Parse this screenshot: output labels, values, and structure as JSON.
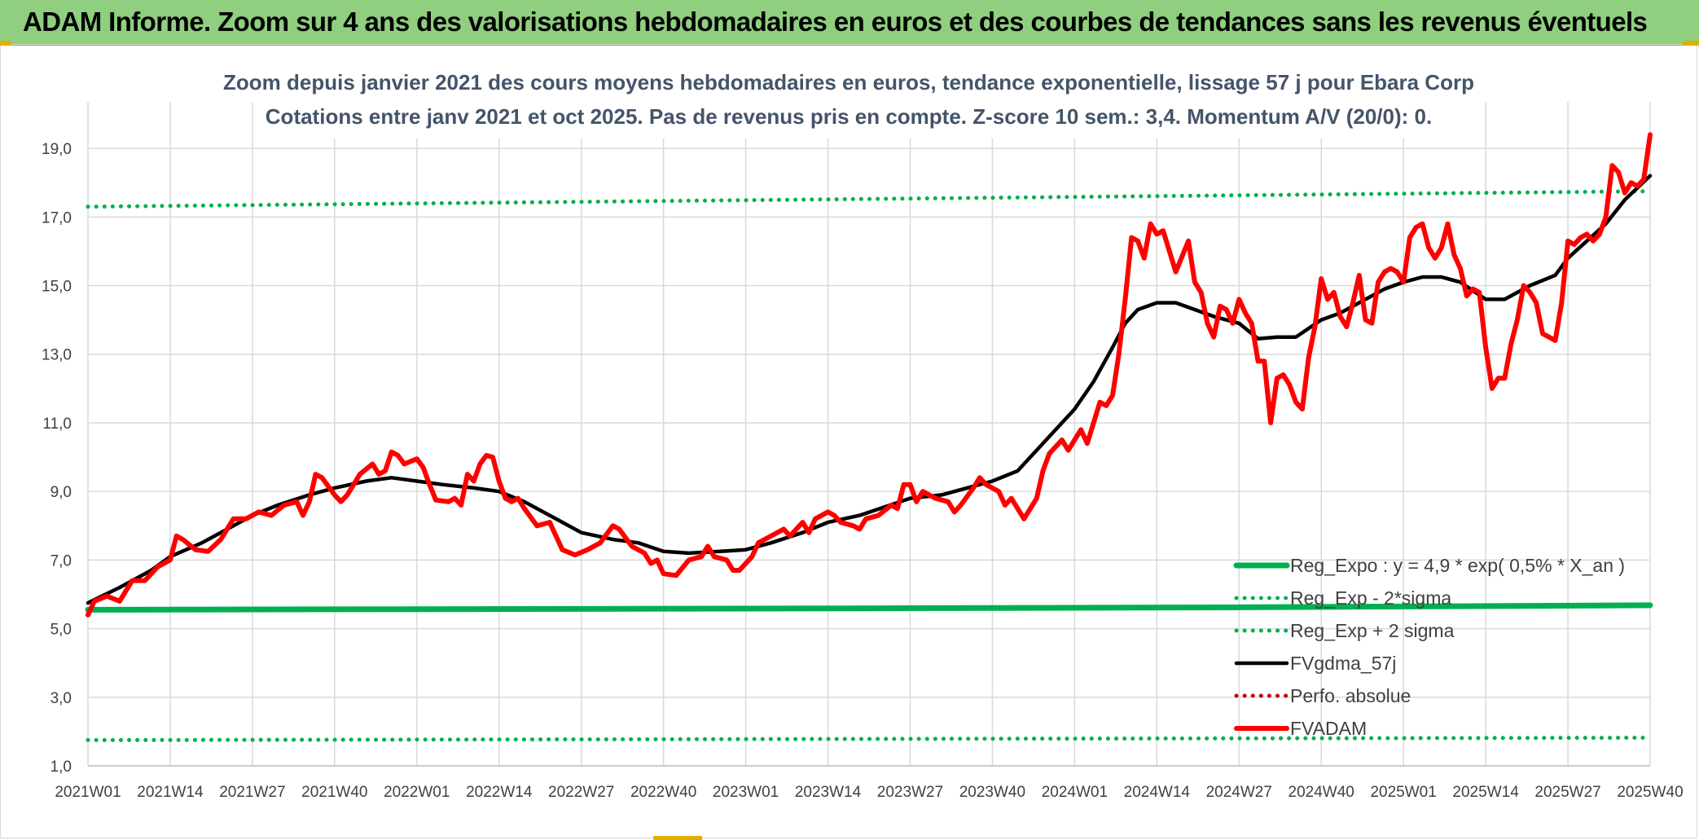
{
  "banner": {
    "title": "ADAM Informe. Zoom sur 4 ans des valorisations hebdomadaires en euros et des courbes de tendances sans les revenus éventuels"
  },
  "colors": {
    "banner_bg": "#8fcf7f",
    "reg_expo": "#00b050",
    "fvgdma": "#000000",
    "perfo": "#c00000",
    "fvadam": "#ff0000",
    "grid": "#d9d9d9"
  },
  "chart_data": {
    "type": "line",
    "title": "Zoom depuis janvier 2021 des cours moyens hebdomadaires en euros, tendance exponentielle, lissage 57 j pour Ebara Corp",
    "subtitle": "Cotations entre janv 2021 et oct 2025. Pas de revenus pris en compte. Z-score 10 sem.: 3,4. Momentum A/V (20/0): 0.",
    "xlabel": "",
    "ylabel": "",
    "ylim": [
      1,
      20
    ],
    "y_ticks": [
      "1,0",
      "3,0",
      "5,0",
      "7,0",
      "9,0",
      "11,0",
      "13,0",
      "15,0",
      "17,0",
      "19,0"
    ],
    "y_tick_values": [
      1,
      3,
      5,
      7,
      9,
      11,
      13,
      15,
      17,
      19
    ],
    "x_ticks": [
      "2021W01",
      "2021W14",
      "2021W27",
      "2021W40",
      "2022W01",
      "2022W14",
      "2022W27",
      "2022W40",
      "2023W01",
      "2023W14",
      "2023W27",
      "2023W40",
      "2024W01",
      "2024W14",
      "2024W27",
      "2024W40",
      "2025W01",
      "2025W14",
      "2025W27",
      "2025W40"
    ],
    "x_tick_index": [
      0,
      13,
      26,
      39,
      52,
      65,
      78,
      91,
      104,
      117,
      130,
      143,
      156,
      169,
      182,
      195,
      208,
      221,
      234,
      247
    ],
    "x_max_index": 247,
    "grid": true,
    "legend_position": "lower-right",
    "series": [
      {
        "name": "Reg_Expo : y = 4,9 * exp( 0,5% *  X_an )",
        "style": "solid-thick",
        "color": "#00b050",
        "points": [
          [
            0,
            5.55
          ],
          [
            60,
            5.57
          ],
          [
            120,
            5.59
          ],
          [
            180,
            5.62
          ],
          [
            247,
            5.68
          ]
        ]
      },
      {
        "name": "Reg_Exp - 2*sigma",
        "style": "dotted",
        "color": "#00b050",
        "points": [
          [
            0,
            1.75
          ],
          [
            247,
            1.82
          ]
        ]
      },
      {
        "name": "Reg_Exp + 2 sigma",
        "style": "dotted",
        "color": "#00b050",
        "points": [
          [
            0,
            17.3
          ],
          [
            247,
            17.75
          ]
        ]
      },
      {
        "name": "FVgdma_57j",
        "style": "solid",
        "color": "#000000",
        "points": [
          [
            0,
            5.75
          ],
          [
            5,
            6.2
          ],
          [
            10,
            6.7
          ],
          [
            13,
            7.1
          ],
          [
            18,
            7.5
          ],
          [
            23,
            8.0
          ],
          [
            26,
            8.3
          ],
          [
            30,
            8.6
          ],
          [
            35,
            8.9
          ],
          [
            39,
            9.1
          ],
          [
            44,
            9.3
          ],
          [
            48,
            9.4
          ],
          [
            52,
            9.3
          ],
          [
            56,
            9.2
          ],
          [
            61,
            9.1
          ],
          [
            65,
            9.0
          ],
          [
            69,
            8.7
          ],
          [
            73,
            8.3
          ],
          [
            78,
            7.8
          ],
          [
            83,
            7.6
          ],
          [
            87,
            7.5
          ],
          [
            91,
            7.25
          ],
          [
            95,
            7.2
          ],
          [
            100,
            7.25
          ],
          [
            104,
            7.3
          ],
          [
            108,
            7.5
          ],
          [
            113,
            7.8
          ],
          [
            117,
            8.1
          ],
          [
            122,
            8.3
          ],
          [
            126,
            8.55
          ],
          [
            130,
            8.8
          ],
          [
            135,
            8.9
          ],
          [
            139,
            9.1
          ],
          [
            143,
            9.3
          ],
          [
            147,
            9.6
          ],
          [
            150,
            10.2
          ],
          [
            153,
            10.8
          ],
          [
            156,
            11.4
          ],
          [
            159,
            12.2
          ],
          [
            162,
            13.2
          ],
          [
            164,
            13.9
          ],
          [
            166,
            14.3
          ],
          [
            169,
            14.5
          ],
          [
            172,
            14.5
          ],
          [
            175,
            14.3
          ],
          [
            178,
            14.1
          ],
          [
            182,
            13.9
          ],
          [
            185,
            13.45
          ],
          [
            188,
            13.5
          ],
          [
            191,
            13.5
          ],
          [
            195,
            14.0
          ],
          [
            198,
            14.2
          ],
          [
            202,
            14.6
          ],
          [
            205,
            14.9
          ],
          [
            208,
            15.1
          ],
          [
            211,
            15.25
          ],
          [
            214,
            15.25
          ],
          [
            217,
            15.1
          ],
          [
            221,
            14.6
          ],
          [
            224,
            14.6
          ],
          [
            228,
            15.0
          ],
          [
            232,
            15.3
          ],
          [
            234,
            15.8
          ],
          [
            237,
            16.3
          ],
          [
            240,
            16.8
          ],
          [
            243,
            17.5
          ],
          [
            247,
            18.2
          ]
        ]
      },
      {
        "name": "Perfo. absolue",
        "style": "dotted",
        "color": "#c00000",
        "points": []
      },
      {
        "name": "FVADAM",
        "style": "solid-thick",
        "color": "#ff0000",
        "points": [
          [
            0,
            5.4
          ],
          [
            1,
            5.8
          ],
          [
            3,
            5.95
          ],
          [
            5,
            5.8
          ],
          [
            7,
            6.4
          ],
          [
            9,
            6.4
          ],
          [
            11,
            6.8
          ],
          [
            13,
            7.0
          ],
          [
            14,
            7.7
          ],
          [
            15,
            7.6
          ],
          [
            17,
            7.3
          ],
          [
            19,
            7.25
          ],
          [
            21,
            7.6
          ],
          [
            23,
            8.2
          ],
          [
            25,
            8.2
          ],
          [
            27,
            8.4
          ],
          [
            29,
            8.3
          ],
          [
            31,
            8.6
          ],
          [
            33,
            8.7
          ],
          [
            34,
            8.3
          ],
          [
            35,
            8.7
          ],
          [
            36,
            9.5
          ],
          [
            37,
            9.4
          ],
          [
            39,
            8.9
          ],
          [
            40,
            8.7
          ],
          [
            41,
            8.9
          ],
          [
            43,
            9.5
          ],
          [
            45,
            9.8
          ],
          [
            46,
            9.5
          ],
          [
            47,
            9.6
          ],
          [
            48,
            10.15
          ],
          [
            49,
            10.05
          ],
          [
            50,
            9.8
          ],
          [
            52,
            9.95
          ],
          [
            53,
            9.7
          ],
          [
            54,
            9.2
          ],
          [
            55,
            8.75
          ],
          [
            57,
            8.7
          ],
          [
            58,
            8.8
          ],
          [
            59,
            8.6
          ],
          [
            60,
            9.5
          ],
          [
            61,
            9.3
          ],
          [
            62,
            9.8
          ],
          [
            63,
            10.05
          ],
          [
            64,
            10.0
          ],
          [
            65,
            9.3
          ],
          [
            66,
            8.8
          ],
          [
            67,
            8.7
          ],
          [
            68,
            8.8
          ],
          [
            69,
            8.5
          ],
          [
            71,
            8.0
          ],
          [
            73,
            8.1
          ],
          [
            75,
            7.3
          ],
          [
            77,
            7.15
          ],
          [
            79,
            7.3
          ],
          [
            81,
            7.5
          ],
          [
            83,
            8.0
          ],
          [
            84,
            7.9
          ],
          [
            86,
            7.4
          ],
          [
            88,
            7.2
          ],
          [
            89,
            6.9
          ],
          [
            90,
            7.0
          ],
          [
            91,
            6.6
          ],
          [
            93,
            6.55
          ],
          [
            95,
            7.0
          ],
          [
            97,
            7.1
          ],
          [
            98,
            7.4
          ],
          [
            99,
            7.1
          ],
          [
            101,
            7.0
          ],
          [
            102,
            6.7
          ],
          [
            103,
            6.7
          ],
          [
            105,
            7.1
          ],
          [
            106,
            7.5
          ],
          [
            108,
            7.7
          ],
          [
            110,
            7.9
          ],
          [
            111,
            7.7
          ],
          [
            113,
            8.1
          ],
          [
            114,
            7.8
          ],
          [
            115,
            8.2
          ],
          [
            117,
            8.4
          ],
          [
            118,
            8.3
          ],
          [
            119,
            8.1
          ],
          [
            121,
            8.0
          ],
          [
            122,
            7.9
          ],
          [
            123,
            8.2
          ],
          [
            125,
            8.3
          ],
          [
            127,
            8.6
          ],
          [
            128,
            8.5
          ],
          [
            129,
            9.2
          ],
          [
            130,
            9.2
          ],
          [
            131,
            8.7
          ],
          [
            132,
            9.0
          ],
          [
            134,
            8.8
          ],
          [
            136,
            8.7
          ],
          [
            137,
            8.4
          ],
          [
            138,
            8.6
          ],
          [
            140,
            9.1
          ],
          [
            141,
            9.4
          ],
          [
            142,
            9.2
          ],
          [
            144,
            9.0
          ],
          [
            145,
            8.6
          ],
          [
            146,
            8.8
          ],
          [
            148,
            8.2
          ],
          [
            150,
            8.8
          ],
          [
            151,
            9.6
          ],
          [
            152,
            10.1
          ],
          [
            154,
            10.5
          ],
          [
            155,
            10.2
          ],
          [
            157,
            10.8
          ],
          [
            158,
            10.4
          ],
          [
            159,
            11.0
          ],
          [
            160,
            11.6
          ],
          [
            161,
            11.5
          ],
          [
            162,
            11.8
          ],
          [
            163,
            13.0
          ],
          [
            164,
            14.6
          ],
          [
            165,
            16.4
          ],
          [
            166,
            16.3
          ],
          [
            167,
            15.8
          ],
          [
            168,
            16.8
          ],
          [
            169,
            16.5
          ],
          [
            170,
            16.6
          ],
          [
            172,
            15.4
          ],
          [
            174,
            16.3
          ],
          [
            175,
            15.1
          ],
          [
            176,
            14.8
          ],
          [
            177,
            13.9
          ],
          [
            178,
            13.5
          ],
          [
            179,
            14.4
          ],
          [
            180,
            14.3
          ],
          [
            181,
            13.9
          ],
          [
            182,
            14.6
          ],
          [
            183,
            14.2
          ],
          [
            184,
            13.9
          ],
          [
            185,
            12.8
          ],
          [
            186,
            12.8
          ],
          [
            187,
            11.0
          ],
          [
            188,
            12.3
          ],
          [
            189,
            12.4
          ],
          [
            190,
            12.1
          ],
          [
            191,
            11.6
          ],
          [
            192,
            11.4
          ],
          [
            193,
            12.9
          ],
          [
            194,
            13.8
          ],
          [
            195,
            15.2
          ],
          [
            196,
            14.6
          ],
          [
            197,
            14.8
          ],
          [
            198,
            14.1
          ],
          [
            199,
            13.8
          ],
          [
            200,
            14.5
          ],
          [
            201,
            15.3
          ],
          [
            202,
            14.0
          ],
          [
            203,
            13.9
          ],
          [
            204,
            15.1
          ],
          [
            205,
            15.4
          ],
          [
            206,
            15.5
          ],
          [
            207,
            15.4
          ],
          [
            208,
            15.1
          ],
          [
            209,
            16.4
          ],
          [
            210,
            16.7
          ],
          [
            211,
            16.8
          ],
          [
            212,
            16.1
          ],
          [
            213,
            15.8
          ],
          [
            214,
            16.1
          ],
          [
            215,
            16.8
          ],
          [
            216,
            15.9
          ],
          [
            217,
            15.5
          ],
          [
            218,
            14.7
          ],
          [
            219,
            14.9
          ],
          [
            220,
            14.8
          ],
          [
            221,
            13.2
          ],
          [
            222,
            12.0
          ],
          [
            223,
            12.3
          ],
          [
            224,
            12.3
          ],
          [
            225,
            13.3
          ],
          [
            226,
            14.0
          ],
          [
            227,
            15.0
          ],
          [
            228,
            14.8
          ],
          [
            229,
            14.5
          ],
          [
            230,
            13.6
          ],
          [
            231,
            13.5
          ],
          [
            232,
            13.4
          ],
          [
            233,
            14.5
          ],
          [
            234,
            16.3
          ],
          [
            235,
            16.2
          ],
          [
            236,
            16.4
          ],
          [
            237,
            16.5
          ],
          [
            238,
            16.3
          ],
          [
            239,
            16.5
          ],
          [
            240,
            17.0
          ],
          [
            241,
            18.5
          ],
          [
            242,
            18.3
          ],
          [
            243,
            17.7
          ],
          [
            244,
            18.0
          ],
          [
            245,
            17.9
          ],
          [
            246,
            18.1
          ],
          [
            247,
            19.4
          ]
        ]
      }
    ]
  }
}
